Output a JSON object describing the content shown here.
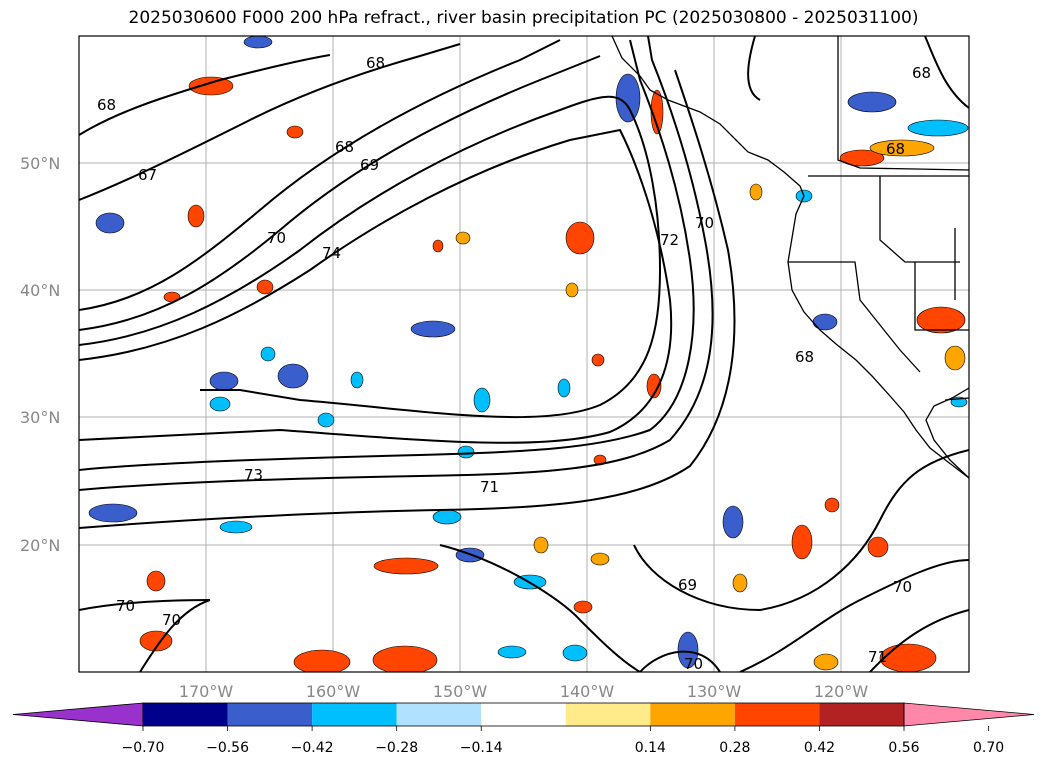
{
  "title": "2025030600 F000 200 hPa refract., river basin precipitation PC (2025030800 - 2025031100)",
  "lat_labels": [
    "50°N",
    "40°N",
    "30°N",
    "20°N"
  ],
  "lon_labels": [
    "170°W",
    "160°W",
    "150°W",
    "140°W",
    "130°W",
    "120°W"
  ],
  "contour_labels": [
    {
      "text": "68"
    },
    {
      "text": "67"
    },
    {
      "text": "68"
    },
    {
      "text": "69"
    },
    {
      "text": "70"
    },
    {
      "text": "74"
    },
    {
      "text": "72"
    },
    {
      "text": "70"
    },
    {
      "text": "68"
    },
    {
      "text": "68"
    },
    {
      "text": "73"
    },
    {
      "text": "71"
    },
    {
      "text": "69"
    },
    {
      "text": "70"
    },
    {
      "text": "70"
    },
    {
      "text": "70"
    },
    {
      "text": "70"
    },
    {
      "text": "71"
    },
    {
      "text": "68"
    },
    {
      "text": "68"
    }
  ],
  "colorbar": {
    "ticks": [
      "−0.70",
      "−0.56",
      "−0.42",
      "−0.28",
      "−0.14",
      "0.14",
      "0.28",
      "0.42",
      "0.56",
      "0.70"
    ],
    "colors": [
      "#9932cc",
      "#00008b",
      "#3a5fcd",
      "#00bfff",
      "#b0e2ff",
      "#ffffff",
      "#ffeb8a",
      "#ffa500",
      "#ff4500",
      "#b22222",
      "#ff88aa"
    ]
  }
}
